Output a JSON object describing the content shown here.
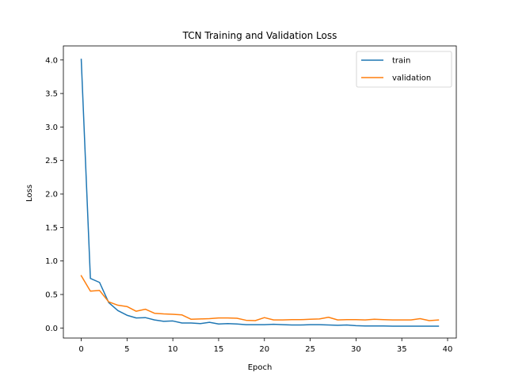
{
  "chart_data": {
    "type": "line",
    "title": "TCN Training and Validation Loss",
    "xlabel": "Epoch",
    "ylabel": "Loss",
    "xlim": [
      -1.95,
      40.95
    ],
    "ylim": [
      -0.15,
      4.21
    ],
    "xticks": [
      0,
      5,
      10,
      15,
      20,
      25,
      30,
      35,
      40
    ],
    "yticks": [
      0.0,
      0.5,
      1.0,
      1.5,
      2.0,
      2.5,
      3.0,
      3.5,
      4.0
    ],
    "xtick_labels": [
      "0",
      "5",
      "10",
      "15",
      "20",
      "25",
      "30",
      "35",
      "40"
    ],
    "ytick_labels": [
      "0.0",
      "0.5",
      "1.0",
      "1.5",
      "2.0",
      "2.5",
      "3.0",
      "3.5",
      "4.0"
    ],
    "grid": false,
    "legend_position": "top-right",
    "x": [
      0,
      1,
      2,
      3,
      4,
      5,
      6,
      7,
      8,
      9,
      10,
      11,
      12,
      13,
      14,
      15,
      16,
      17,
      18,
      19,
      20,
      21,
      22,
      23,
      24,
      25,
      26,
      27,
      28,
      29,
      30,
      31,
      32,
      33,
      34,
      35,
      36,
      37,
      38,
      39
    ],
    "series": [
      {
        "name": "train",
        "color": "#1f77b4",
        "values": [
          4.01,
          0.74,
          0.68,
          0.38,
          0.26,
          0.19,
          0.15,
          0.155,
          0.12,
          0.1,
          0.105,
          0.075,
          0.075,
          0.065,
          0.085,
          0.06,
          0.065,
          0.06,
          0.05,
          0.05,
          0.05,
          0.055,
          0.05,
          0.045,
          0.045,
          0.05,
          0.05,
          0.045,
          0.04,
          0.045,
          0.035,
          0.03,
          0.03,
          0.03,
          0.028,
          0.028,
          0.028,
          0.028,
          0.028,
          0.028
        ]
      },
      {
        "name": "validation",
        "color": "#ff7f0e",
        "values": [
          0.78,
          0.55,
          0.56,
          0.39,
          0.34,
          0.32,
          0.25,
          0.28,
          0.22,
          0.21,
          0.205,
          0.195,
          0.13,
          0.135,
          0.14,
          0.15,
          0.15,
          0.145,
          0.115,
          0.11,
          0.155,
          0.12,
          0.12,
          0.125,
          0.125,
          0.13,
          0.135,
          0.16,
          0.12,
          0.125,
          0.125,
          0.12,
          0.13,
          0.125,
          0.12,
          0.12,
          0.12,
          0.14,
          0.11,
          0.12
        ]
      }
    ]
  }
}
